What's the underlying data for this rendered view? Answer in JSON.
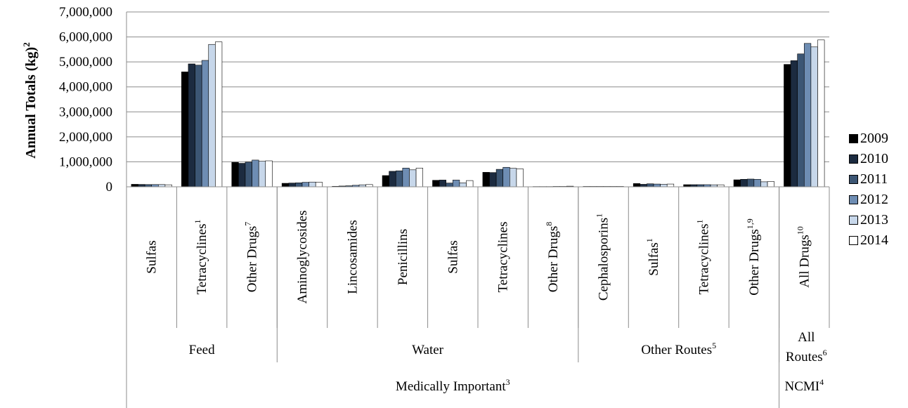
{
  "chart_data": {
    "type": "bar",
    "ylabel": "Annual Totals (kg)",
    "ylabel_sup": "2",
    "ylim": [
      0,
      7000000
    ],
    "yticks": [
      "0",
      "1,000,000",
      "2,000,000",
      "3,000,000",
      "4,000,000",
      "5,000,000",
      "6,000,000",
      "7,000,000"
    ],
    "grid": true,
    "legend_position": "right",
    "categories": [
      {
        "label": "Sulfas",
        "sup": ""
      },
      {
        "label": "Tetracyclines",
        "sup": "1"
      },
      {
        "label": "Other Drugs",
        "sup": "7"
      },
      {
        "label": "Aminoglycosides",
        "sup": ""
      },
      {
        "label": "Lincosamides",
        "sup": ""
      },
      {
        "label": "Penicillins",
        "sup": ""
      },
      {
        "label": "Sulfas",
        "sup": ""
      },
      {
        "label": "Tetracyclines",
        "sup": ""
      },
      {
        "label": "Other Drugs",
        "sup": "8"
      },
      {
        "label": "Cephalosporins",
        "sup": "1"
      },
      {
        "label": "Sulfas",
        "sup": "1"
      },
      {
        "label": "Tetracyclines",
        "sup": "1"
      },
      {
        "label": "Other Drugs",
        "sup": "1,9"
      },
      {
        "label": "All Drugs",
        "sup": "10"
      }
    ],
    "groups_level1": [
      {
        "label": "Feed",
        "sup": "",
        "span": 3
      },
      {
        "label": "Water",
        "sup": "",
        "span": 6
      },
      {
        "label": "Other Routes",
        "sup": "5",
        "span": 4
      },
      {
        "label": "All Routes",
        "sup": "6",
        "span": 1
      }
    ],
    "groups_level2": [
      {
        "label": "Medically Important",
        "sup": "3",
        "span": 13
      },
      {
        "label": "NCMI",
        "sup": "4",
        "span": 1
      }
    ],
    "colors": [
      "#000000",
      "#1c2b40",
      "#3c5674",
      "#6e8db3",
      "#c7d7ea",
      "#ffffff"
    ],
    "series": [
      {
        "name": "2009",
        "values": [
          100000,
          4600000,
          980000,
          140000,
          20000,
          450000,
          260000,
          580000,
          10000,
          15000,
          130000,
          85000,
          280000,
          4900000
        ]
      },
      {
        "name": "2010",
        "values": [
          95000,
          4920000,
          940000,
          150000,
          30000,
          620000,
          270000,
          570000,
          10000,
          15000,
          100000,
          85000,
          300000,
          5050000
        ]
      },
      {
        "name": "2011",
        "values": [
          90000,
          4870000,
          990000,
          160000,
          40000,
          640000,
          150000,
          700000,
          10000,
          15000,
          120000,
          85000,
          310000,
          5320000
        ]
      },
      {
        "name": "2012",
        "values": [
          90000,
          5060000,
          1070000,
          180000,
          60000,
          750000,
          270000,
          780000,
          15000,
          15000,
          110000,
          85000,
          300000,
          5740000
        ]
      },
      {
        "name": "2013",
        "values": [
          90000,
          5700000,
          1020000,
          190000,
          80000,
          680000,
          160000,
          740000,
          15000,
          15000,
          100000,
          80000,
          200000,
          5600000
        ]
      },
      {
        "name": "2014",
        "values": [
          80000,
          5800000,
          1040000,
          180000,
          90000,
          750000,
          250000,
          720000,
          25000,
          15000,
          110000,
          80000,
          210000,
          5880000
        ]
      }
    ]
  }
}
